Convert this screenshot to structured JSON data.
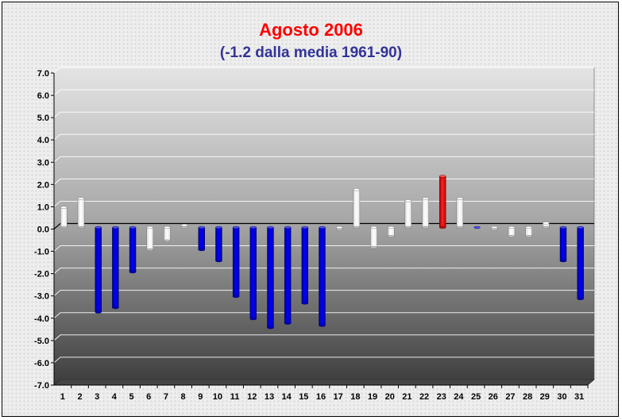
{
  "colors": {
    "title": "#ff0000",
    "subtitle": "#333399",
    "positive": "#ffffff",
    "negative_small": "#ffffff",
    "negative_large": "#0000ee",
    "highlight": "#ee1111"
  },
  "chart_data": {
    "type": "bar",
    "title": "Agosto 2006",
    "subtitle": "(-1.2 dalla media 1961-90)",
    "xlabel": "",
    "ylabel": "",
    "ylim": [
      -7,
      7
    ],
    "yticks": [
      "-7.0",
      "-6.0",
      "-5.0",
      "-4.0",
      "-3.0",
      "-2.0",
      "-1.0",
      "0.0",
      "1.0",
      "2.0",
      "3.0",
      "4.0",
      "5.0",
      "6.0",
      "7.0"
    ],
    "grid": true,
    "legend": "none",
    "categories": [
      "1",
      "2",
      "3",
      "4",
      "5",
      "6",
      "7",
      "8",
      "9",
      "10",
      "11",
      "12",
      "13",
      "14",
      "15",
      "16",
      "17",
      "18",
      "19",
      "20",
      "21",
      "22",
      "23",
      "24",
      "25",
      "26",
      "27",
      "28",
      "29",
      "30",
      "31"
    ],
    "values": [
      0.9,
      1.3,
      -3.8,
      -3.6,
      -2.0,
      -1.0,
      -0.6,
      0.1,
      -1.0,
      -1.5,
      -3.1,
      -4.1,
      -4.5,
      -4.3,
      -3.4,
      -4.4,
      -0.1,
      1.7,
      -0.9,
      -0.4,
      1.2,
      1.3,
      2.3,
      1.3,
      0.0,
      -0.1,
      -0.4,
      -0.4,
      0.2,
      -1.5,
      -3.2
    ],
    "bar_colors": [
      "white",
      "white",
      "blue",
      "blue",
      "blue",
      "white",
      "white",
      "white",
      "blue",
      "blue",
      "blue",
      "blue",
      "blue",
      "blue",
      "blue",
      "blue",
      "white",
      "white",
      "white",
      "white",
      "white",
      "white",
      "red",
      "white",
      "blue",
      "white",
      "white",
      "white",
      "white",
      "blue",
      "blue"
    ]
  }
}
